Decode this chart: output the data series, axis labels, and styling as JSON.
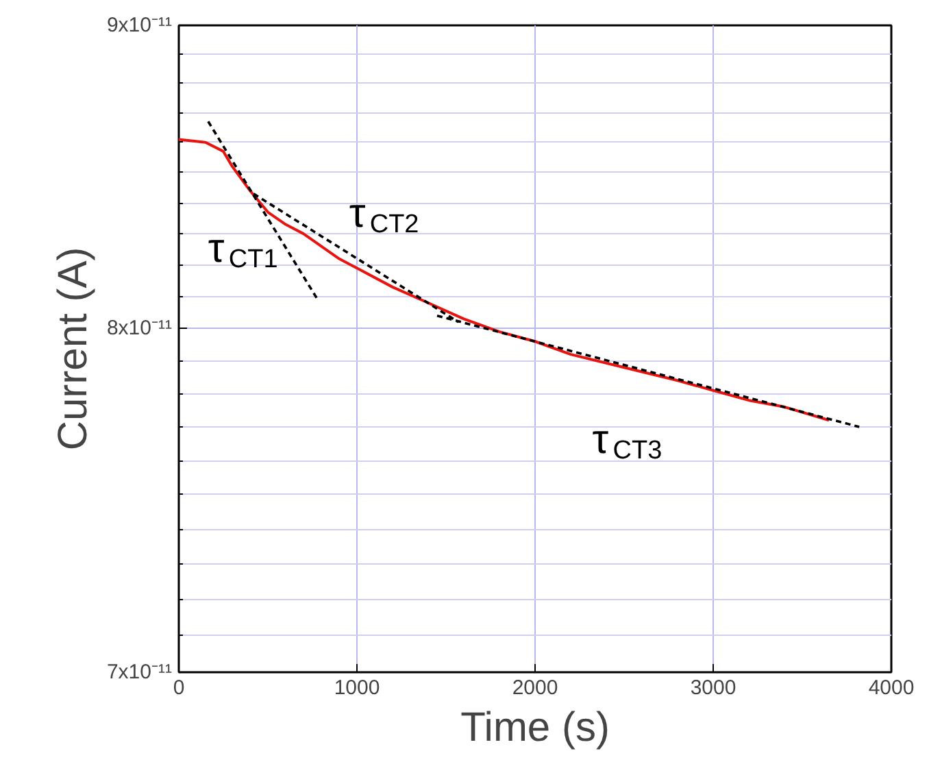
{
  "chart_data": {
    "type": "line",
    "xlabel": "Time (s)",
    "ylabel": "Current (A)",
    "log": "y",
    "xlim": [
      0,
      4000
    ],
    "xticks": [
      0,
      1000,
      2000,
      3000,
      4000
    ],
    "ylim": [
      7e-11,
      9e-11
    ],
    "yticks": [
      {
        "value": 7e-11,
        "label": "7x10⁻¹¹"
      },
      {
        "value": 8e-11,
        "label": "8x10⁻¹¹"
      },
      {
        "value": 9e-11,
        "label": "9x10⁻¹¹"
      }
    ],
    "grid": true,
    "marker": "none",
    "series": [
      {
        "color": "#e8140f",
        "line_style": "solid",
        "x": [
          0,
          150,
          250,
          300,
          400,
          500,
          600,
          700,
          800,
          900,
          1000,
          1200,
          1400,
          1600,
          1800,
          2000,
          2200,
          2500,
          2800,
          3000,
          3200,
          3400,
          3650
        ],
        "values": [
          8.61e-11,
          8.6e-11,
          8.57e-11,
          8.52e-11,
          8.44e-11,
          8.37e-11,
          8.33e-11,
          8.3e-11,
          8.26e-11,
          8.22e-11,
          8.19e-11,
          8.13e-11,
          8.08e-11,
          8.03e-11,
          7.99e-11,
          7.96e-11,
          7.92e-11,
          7.88e-11,
          7.84e-11,
          7.81e-11,
          7.78e-11,
          7.76e-11,
          7.72e-11
        ]
      },
      {
        "color": "#000000",
        "line_style": "dashed",
        "x": [
          165,
          780
        ],
        "values": [
          8.67e-11,
          8.09e-11
        ]
      },
      {
        "color": "#000000",
        "line_style": "dashed",
        "x": [
          420,
          1570
        ],
        "values": [
          8.43e-11,
          8.02e-11
        ]
      },
      {
        "color": "#000000",
        "line_style": "dashed",
        "x": [
          1450,
          3820
        ],
        "values": [
          8.04e-11,
          7.7e-11
        ]
      }
    ],
    "annotations": [
      "τ$_{CT1}$",
      "τ$_{CT2}$",
      "τ$_{CT3}$"
    ]
  }
}
